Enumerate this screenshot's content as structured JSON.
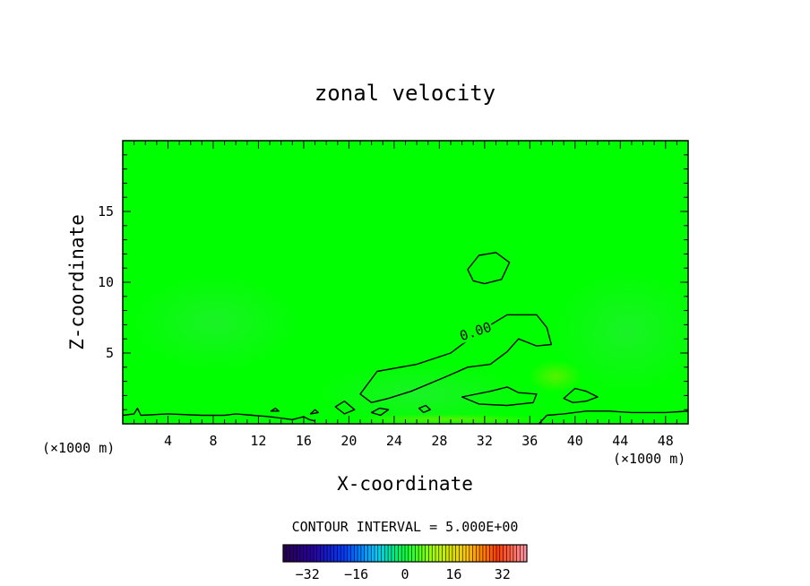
{
  "chart_data": {
    "type": "heatmap",
    "title": "zonal velocity",
    "xlabel": "X-coordinate",
    "ylabel": "Z-coordinate",
    "x_unit": "(×1000 m)",
    "x_unit_right": "(×1000 m)",
    "xlim": [
      0,
      50
    ],
    "ylim": [
      0,
      20
    ],
    "x_ticks": [
      "4",
      "8",
      "12",
      "16",
      "20",
      "24",
      "28",
      "32",
      "36",
      "40",
      "44",
      "48"
    ],
    "x_tick_values": [
      4,
      8,
      12,
      16,
      20,
      24,
      28,
      32,
      36,
      40,
      44,
      48
    ],
    "y_ticks": [
      "5",
      "10",
      "15"
    ],
    "y_tick_values": [
      5,
      10,
      15
    ],
    "background_value": 0,
    "contour_label": "0.00",
    "contour_label_position": [
      31.2,
      6.2
    ],
    "contour_interval_text": "CONTOUR INTERVAL = 5.000E+00",
    "contours": [
      {
        "value": 0,
        "closed": true,
        "points": [
          [
            31.0,
            10.1
          ],
          [
            30.5,
            10.9
          ],
          [
            31.5,
            11.9
          ],
          [
            33.0,
            12.1
          ],
          [
            34.2,
            11.4
          ],
          [
            33.5,
            10.2
          ],
          [
            32.0,
            9.9
          ]
        ]
      },
      {
        "value": 0,
        "closed": true,
        "points": [
          [
            21.0,
            2.1
          ],
          [
            22.5,
            3.7
          ],
          [
            26.0,
            4.2
          ],
          [
            29.0,
            5.0
          ],
          [
            31.5,
            6.5
          ],
          [
            34.0,
            7.7
          ],
          [
            36.6,
            7.7
          ],
          [
            37.5,
            6.8
          ],
          [
            37.9,
            5.6
          ],
          [
            36.6,
            5.5
          ],
          [
            35.0,
            6.0
          ],
          [
            34.0,
            5.1
          ],
          [
            32.5,
            4.2
          ],
          [
            30.5,
            4.0
          ],
          [
            28.5,
            3.3
          ],
          [
            25.5,
            2.3
          ],
          [
            23.5,
            1.8
          ],
          [
            22.0,
            1.5
          ]
        ]
      },
      {
        "value": 0,
        "closed": true,
        "points": [
          [
            30.0,
            1.9
          ],
          [
            32.5,
            2.3
          ],
          [
            34.0,
            2.6
          ],
          [
            35.0,
            2.2
          ],
          [
            36.6,
            2.1
          ],
          [
            36.3,
            1.5
          ],
          [
            34.0,
            1.3
          ],
          [
            31.5,
            1.4
          ]
        ]
      },
      {
        "value": 0,
        "closed": true,
        "points": [
          [
            39.0,
            1.8
          ],
          [
            40.0,
            2.5
          ],
          [
            41.0,
            2.3
          ],
          [
            42.0,
            1.9
          ],
          [
            41.0,
            1.6
          ],
          [
            39.8,
            1.5
          ]
        ]
      },
      {
        "value": 0,
        "closed": true,
        "points": [
          [
            18.8,
            1.2
          ],
          [
            19.6,
            1.6
          ],
          [
            20.5,
            1.0
          ],
          [
            19.6,
            0.7
          ]
        ]
      },
      {
        "value": 0,
        "closed": true,
        "points": [
          [
            22.0,
            0.8
          ],
          [
            22.7,
            1.1
          ],
          [
            23.5,
            1.0
          ],
          [
            22.8,
            0.6
          ]
        ]
      },
      {
        "value": 0,
        "closed": true,
        "points": [
          [
            26.2,
            1.1
          ],
          [
            26.8,
            1.3
          ],
          [
            27.2,
            1.0
          ],
          [
            26.6,
            0.8
          ]
        ]
      },
      {
        "value": 0,
        "closed": true,
        "points": [
          [
            13.1,
            0.9
          ],
          [
            13.5,
            1.1
          ],
          [
            13.8,
            0.9
          ]
        ]
      },
      {
        "value": 0,
        "closed": true,
        "points": [
          [
            16.6,
            0.7
          ],
          [
            17.0,
            1.0
          ],
          [
            17.3,
            0.8
          ]
        ]
      },
      {
        "value": 0,
        "closed": false,
        "points": [
          [
            0,
            0.6
          ],
          [
            1.0,
            0.7
          ],
          [
            1.3,
            1.1
          ],
          [
            1.6,
            0.6
          ],
          [
            4.0,
            0.7
          ],
          [
            7.0,
            0.6
          ],
          [
            9.0,
            0.6
          ],
          [
            10.0,
            0.7
          ],
          [
            11.5,
            0.6
          ],
          [
            13.0,
            0.5
          ],
          [
            14.0,
            0.4
          ],
          [
            15.0,
            0.3
          ],
          [
            16.0,
            0.5
          ],
          [
            16.5,
            0.3
          ],
          [
            17.0,
            0.2
          ]
        ]
      },
      {
        "value": 0,
        "closed": false,
        "points": [
          [
            36.8,
            0.0
          ],
          [
            37.5,
            0.6
          ],
          [
            39.0,
            0.7
          ],
          [
            41.0,
            0.9
          ],
          [
            43.0,
            0.9
          ],
          [
            45.0,
            0.8
          ],
          [
            48.0,
            0.8
          ],
          [
            50.0,
            0.9
          ]
        ]
      }
    ],
    "colorbar_ticks": [
      "−32",
      "−16",
      "0",
      "16",
      "32"
    ],
    "colorbar_tick_values": [
      -32,
      -16,
      0,
      16,
      32
    ],
    "colorbar_range": [
      -40,
      40
    ],
    "colors": {
      "field": "#00ff00",
      "field_light": "#2aee3a",
      "field_yellow": "#88ee00",
      "axes": "#000000"
    }
  }
}
